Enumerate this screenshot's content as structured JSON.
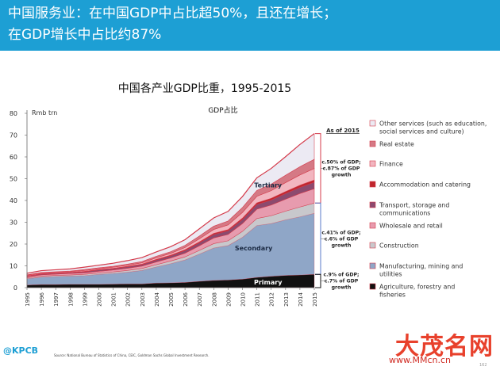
{
  "headline": {
    "line1": "中国服务业：在中国GDP中占比超50%，且还在增长；",
    "line2": "在GDP增长中占比约87%"
  },
  "footer": {
    "logo": "@KPCB",
    "source": "Source: National Bureau of Statistics of China, CEIC, Goldman Sachs Global Investment Research.",
    "page": "162"
  },
  "watermark": {
    "text": "大茂名网",
    "url": "www.MMcn.cn"
  },
  "chart_data": {
    "type": "area",
    "title": "中国各产业GDP比重，1995-2015",
    "subtitle": "GDP占比",
    "ylabel": "Rmb trn",
    "ylim": [
      0,
      80
    ],
    "yticks": [
      0,
      10,
      20,
      30,
      40,
      50,
      60,
      70,
      80
    ],
    "x": [
      "1995",
      "1996",
      "1997",
      "1998",
      "1999",
      "2000",
      "2001",
      "2002",
      "2003",
      "2004",
      "2005",
      "2006",
      "2007",
      "2008",
      "2009",
      "2010",
      "2011",
      "2012",
      "2013",
      "2014",
      "2015"
    ],
    "grid": false,
    "legend_placement": "right",
    "legend_header": "As of 2015",
    "series": [
      {
        "name": "Agriculture, forestry and fisheries",
        "color": "#111111",
        "group": "primary",
        "values": [
          1.2,
          1.4,
          1.4,
          1.5,
          1.5,
          1.5,
          1.6,
          1.7,
          1.7,
          2.1,
          2.2,
          2.4,
          2.9,
          3.3,
          3.5,
          3.9,
          4.7,
          5.2,
          5.6,
          5.8,
          6.1
        ]
      },
      {
        "name": "Manufacturing, mining and utilities",
        "color": "#8fa6c7",
        "group": "secondary",
        "values": [
          2.9,
          3.4,
          3.7,
          3.8,
          4.0,
          4.6,
          4.9,
          5.4,
          6.2,
          7.4,
          8.8,
          10.3,
          12.5,
          14.9,
          15.8,
          19.2,
          23.8,
          24.2,
          25.5,
          26.7,
          28.0
        ]
      },
      {
        "name": "Construction",
        "color": "#c8c8cc",
        "group": "secondary",
        "values": [
          0.4,
          0.5,
          0.5,
          0.5,
          0.6,
          0.6,
          0.7,
          0.8,
          0.9,
          1.0,
          1.2,
          1.4,
          1.7,
          2.0,
          2.2,
          2.7,
          3.2,
          3.6,
          4.0,
          4.5,
          4.7
        ]
      },
      {
        "name": "Wholesale and retail",
        "color": "#e79bae",
        "group": "tertiary",
        "values": [
          0.5,
          0.6,
          0.6,
          0.7,
          0.7,
          0.8,
          0.9,
          1.0,
          1.1,
          1.3,
          1.4,
          1.7,
          2.1,
          2.6,
          2.9,
          3.6,
          4.3,
          4.9,
          5.5,
          6.2,
          6.6
        ]
      },
      {
        "name": "Transport, storage and communications",
        "color": "#8c4a6e",
        "group": "tertiary",
        "values": [
          0.3,
          0.4,
          0.4,
          0.4,
          0.5,
          0.6,
          0.6,
          0.7,
          0.7,
          0.9,
          1.0,
          1.2,
          1.4,
          1.6,
          1.7,
          1.9,
          2.2,
          2.3,
          2.6,
          2.8,
          3.0
        ]
      },
      {
        "name": "Accommodation and catering",
        "color": "#c0262d",
        "group": "tertiary",
        "values": [
          0.1,
          0.1,
          0.1,
          0.1,
          0.2,
          0.2,
          0.2,
          0.2,
          0.2,
          0.3,
          0.3,
          0.4,
          0.4,
          0.5,
          0.5,
          0.6,
          0.7,
          0.8,
          0.9,
          1.0,
          1.0
        ]
      },
      {
        "name": "Finance",
        "color": "#f2b5bf",
        "group": "tertiary",
        "values": [
          0.3,
          0.3,
          0.3,
          0.3,
          0.4,
          0.4,
          0.5,
          0.5,
          0.6,
          0.7,
          0.8,
          1.0,
          1.4,
          1.8,
          2.2,
          2.6,
          3.0,
          3.5,
          4.1,
          4.7,
          5.3
        ]
      },
      {
        "name": "Real estate",
        "color": "#d57985",
        "group": "tertiary",
        "values": [
          0.2,
          0.3,
          0.3,
          0.3,
          0.4,
          0.4,
          0.4,
          0.5,
          0.6,
          0.7,
          0.8,
          1.0,
          1.3,
          1.5,
          1.8,
          2.3,
          2.7,
          3.0,
          3.4,
          3.8,
          4.2
        ]
      },
      {
        "name": "Other services (such as education, social services and culture)",
        "color": "#eceaf3",
        "group": "tertiary",
        "values": [
          0.7,
          0.8,
          0.9,
          1.0,
          1.1,
          1.2,
          1.4,
          1.6,
          1.8,
          2.0,
          2.3,
          2.6,
          3.3,
          3.8,
          4.4,
          5.0,
          5.8,
          7.2,
          8.5,
          10.2,
          11.8
        ]
      }
    ],
    "annotations": [
      {
        "label": "Tertiary",
        "group": "tertiary",
        "bracket_text": "c.50% of GDP; c.87% of GDP growth"
      },
      {
        "label": "Secondary",
        "group": "secondary",
        "bracket_text": "c.41% of GDP; c.6% of GDP growth"
      },
      {
        "label": "Primary",
        "group": "primary",
        "bracket_text": "c.9% of GDP; c.7% of GDP growth"
      }
    ]
  }
}
